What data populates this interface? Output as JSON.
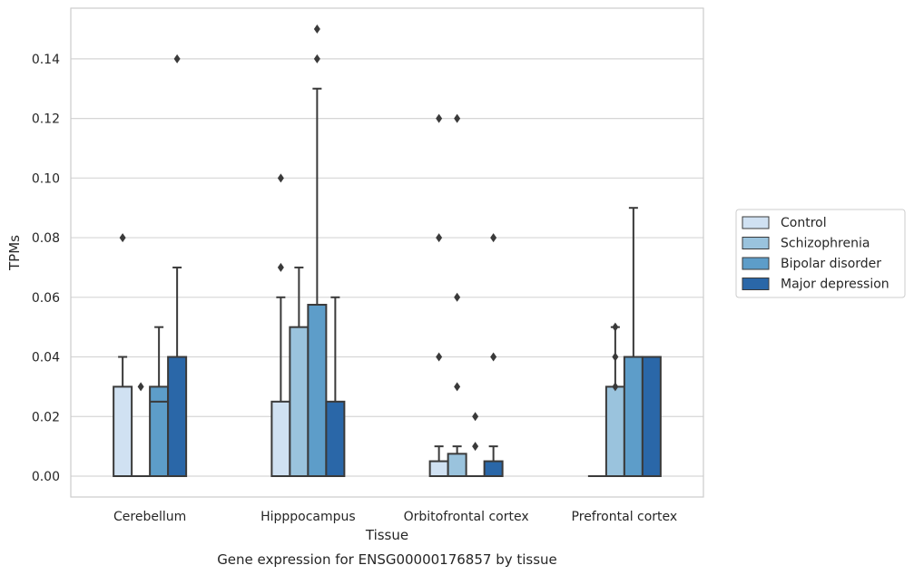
{
  "caption": "Gene expression for ENSG00000176857 by tissue",
  "chart_data": {
    "type": "box",
    "xlabel": "Tissue",
    "ylabel": "TPMs",
    "ylim": [
      -0.007,
      0.157
    ],
    "y_ticks": [
      0.0,
      0.02,
      0.04,
      0.06,
      0.08,
      0.1,
      0.12,
      0.14
    ],
    "y_tick_labels": [
      "0.00",
      "0.02",
      "0.04",
      "0.06",
      "0.08",
      "0.10",
      "0.12",
      "0.14"
    ],
    "grid": "horizontal",
    "legend_position": "right",
    "categories": [
      "Cerebellum",
      "Hipppocampus",
      "Orbitofrontal cortex",
      "Prefrontal cortex"
    ],
    "series": [
      {
        "name": "Control",
        "color": "#d0e1f2",
        "boxes": [
          {
            "q1": 0.0,
            "median": 0.0,
            "q3": 0.03,
            "whisker_low": 0.0,
            "whisker_high": 0.04,
            "outliers": [
              0.08
            ]
          },
          {
            "q1": 0.0,
            "median": 0.0,
            "q3": 0.025,
            "whisker_low": 0.0,
            "whisker_high": 0.06,
            "outliers": [
              0.07,
              0.1
            ]
          },
          {
            "q1": 0.0,
            "median": 0.0,
            "q3": 0.005,
            "whisker_low": 0.0,
            "whisker_high": 0.01,
            "outliers": [
              0.04,
              0.08,
              0.12
            ]
          },
          {
            "q1": 0.0,
            "median": 0.0,
            "q3": 0.0,
            "whisker_low": 0.0,
            "whisker_high": 0.0,
            "outliers": []
          }
        ]
      },
      {
        "name": "Schizophrenia",
        "color": "#9ac3dd",
        "boxes": [
          {
            "q1": 0.0,
            "median": 0.0,
            "q3": 0.0,
            "whisker_low": 0.0,
            "whisker_high": 0.0,
            "outliers": [
              0.03
            ]
          },
          {
            "q1": 0.0,
            "median": 0.0,
            "q3": 0.05,
            "whisker_low": 0.0,
            "whisker_high": 0.07,
            "outliers": []
          },
          {
            "q1": 0.0,
            "median": 0.0,
            "q3": 0.0075,
            "whisker_low": 0.0,
            "whisker_high": 0.01,
            "outliers": [
              0.03,
              0.06,
              0.12
            ]
          },
          {
            "q1": 0.0,
            "median": 0.0,
            "q3": 0.03,
            "whisker_low": 0.0,
            "whisker_high": 0.05,
            "outliers": [
              0.03,
              0.04,
              0.05
            ]
          }
        ]
      },
      {
        "name": "Bipolar disorder",
        "color": "#5d9dc9",
        "boxes": [
          {
            "q1": 0.0,
            "median": 0.025,
            "q3": 0.03,
            "whisker_low": 0.0,
            "whisker_high": 0.05,
            "outliers": []
          },
          {
            "q1": 0.0,
            "median": 0.0,
            "q3": 0.0575,
            "whisker_low": 0.0,
            "whisker_high": 0.13,
            "outliers": [
              0.14,
              0.15
            ]
          },
          {
            "q1": 0.0,
            "median": 0.0,
            "q3": 0.0,
            "whisker_low": 0.0,
            "whisker_high": 0.0,
            "outliers": [
              0.01,
              0.02
            ]
          },
          {
            "q1": 0.0,
            "median": 0.0,
            "q3": 0.04,
            "whisker_low": 0.0,
            "whisker_high": 0.09,
            "outliers": []
          }
        ]
      },
      {
        "name": "Major depression",
        "color": "#2a67a8",
        "boxes": [
          {
            "q1": 0.0,
            "median": 0.0,
            "q3": 0.04,
            "whisker_low": 0.0,
            "whisker_high": 0.07,
            "outliers": [
              0.14
            ]
          },
          {
            "q1": 0.0,
            "median": 0.0,
            "q3": 0.025,
            "whisker_low": 0.0,
            "whisker_high": 0.06,
            "outliers": []
          },
          {
            "q1": 0.0,
            "median": 0.0,
            "q3": 0.005,
            "whisker_low": 0.0,
            "whisker_high": 0.01,
            "outliers": [
              0.04,
              0.08
            ]
          },
          {
            "q1": 0.0,
            "median": 0.0,
            "q3": 0.04,
            "whisker_low": 0.0,
            "whisker_high": 0.04,
            "outliers": []
          }
        ]
      }
    ]
  }
}
